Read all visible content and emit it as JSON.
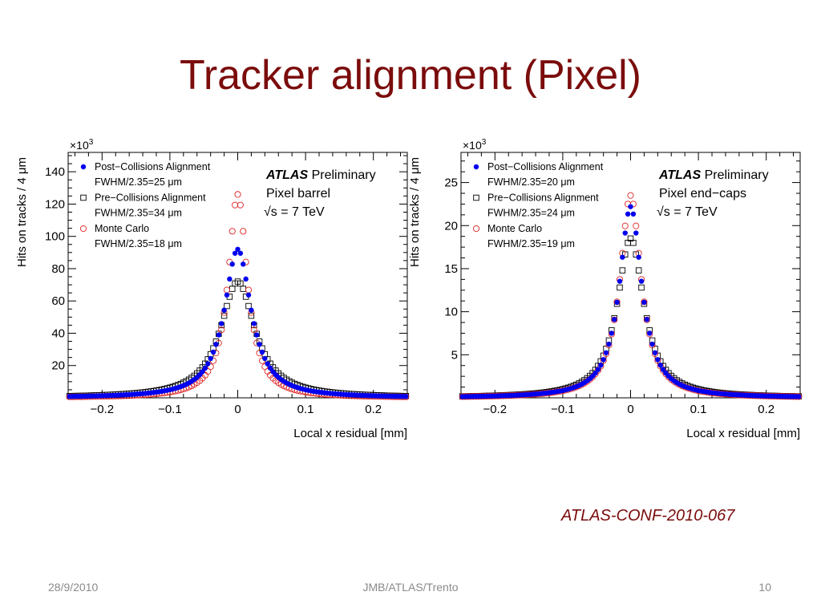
{
  "slide": {
    "title": "Tracker alignment (Pixel)",
    "reference": "ATLAS-CONF-2010-067",
    "footer_left": "28/9/2010",
    "footer_center": "JMB/ATLAS/Trento",
    "footer_right": "10"
  },
  "colors": {
    "title": "#7b0c0c",
    "post_collisions": "#0000ee",
    "pre_collisions": "#000000",
    "monte_carlo": "#dd2222"
  },
  "chart_data": [
    {
      "type": "scatter",
      "atlas_label": "ATLAS",
      "atlas_sublabel": "Preliminary",
      "region_label": "Pixel barrel",
      "energy_label": "s = 7 TeV",
      "energy_sqrt": "√",
      "xlabel": "Local x residual [mm]",
      "ylabel": "Hits on tracks / 4 μm",
      "y_multiplier_base": "×10",
      "y_multiplier_exp": "3",
      "xlim": [
        -0.25,
        0.25
      ],
      "ylim": [
        0,
        152
      ],
      "xticks": [
        -0.2,
        -0.1,
        0,
        0.1,
        0.2
      ],
      "xtick_labels": [
        "−0.2",
        "−0.1",
        "0",
        "0.1",
        "0.2"
      ],
      "yticks": [
        20,
        40,
        60,
        80,
        100,
        120,
        140
      ],
      "ytick_labels": [
        "20",
        "40",
        "60",
        "80",
        "100",
        "120",
        "140"
      ],
      "legend_position": "top-left",
      "series": [
        {
          "name": "Post−Collisions Alignment",
          "fwhm": "FWHM/2.35=25 μm",
          "marker": "filled-circle",
          "color": "#0000ee",
          "peak": 92,
          "gamma": 0.024
        },
        {
          "name": "Pre−Collisions Alignment",
          "fwhm": "FWHM/2.35=34 μm",
          "marker": "open-square",
          "color": "#000000",
          "peak": 72,
          "gamma": 0.031
        },
        {
          "name": "Monte Carlo",
          "fwhm": "FWHM/2.35=18 μm",
          "marker": "open-circle",
          "color": "#dd2222",
          "peak": 126,
          "gamma": 0.017
        }
      ]
    },
    {
      "type": "scatter",
      "atlas_label": "ATLAS",
      "atlas_sublabel": "Preliminary",
      "region_label": "Pixel end−caps",
      "energy_label": "s = 7 TeV",
      "energy_sqrt": "√",
      "xlabel": "Local x residual [mm]",
      "ylabel": "Hits on tracks / 4 μm",
      "y_multiplier_base": "×10",
      "y_multiplier_exp": "3",
      "xlim": [
        -0.25,
        0.25
      ],
      "ylim": [
        0,
        28.5
      ],
      "xticks": [
        -0.2,
        -0.1,
        0,
        0.1,
        0.2
      ],
      "xtick_labels": [
        "−0.2",
        "−0.1",
        "0",
        "0.1",
        "0.2"
      ],
      "yticks": [
        5,
        10,
        15,
        20,
        25
      ],
      "ytick_labels": [
        "5",
        "10",
        "15",
        "20",
        "25"
      ],
      "legend_position": "top-left",
      "series": [
        {
          "name": "Post−Collisions Alignment",
          "fwhm": "FWHM/2.35=20 μm",
          "marker": "filled-circle",
          "color": "#0000ee",
          "peak": 22.2,
          "gamma": 0.02
        },
        {
          "name": "Pre−Collisions Alignment",
          "fwhm": "FWHM/2.35=24 μm",
          "marker": "open-square",
          "color": "#000000",
          "peak": 18.5,
          "gamma": 0.024
        },
        {
          "name": "Monte Carlo",
          "fwhm": "FWHM/2.35=19 μm",
          "marker": "open-circle",
          "color": "#dd2222",
          "peak": 23.5,
          "gamma": 0.019
        }
      ]
    }
  ]
}
